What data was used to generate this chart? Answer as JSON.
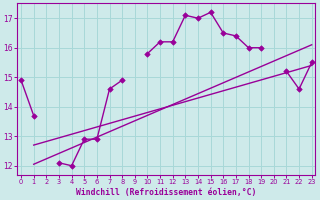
{
  "xlabel": "Windchill (Refroidissement éolien,°C)",
  "bg_color": "#ceeaea",
  "line_color": "#990099",
  "grid_color": "#a8d8d8",
  "x_hours": [
    0,
    1,
    2,
    3,
    4,
    5,
    6,
    7,
    8,
    9,
    10,
    11,
    12,
    13,
    14,
    15,
    16,
    17,
    18,
    19,
    20,
    21,
    22,
    23
  ],
  "y_data": [
    14.9,
    13.7,
    null,
    12.1,
    12.0,
    12.9,
    12.9,
    14.6,
    14.9,
    null,
    15.8,
    16.2,
    16.2,
    17.1,
    17.0,
    17.2,
    16.5,
    16.4,
    16.0,
    16.0,
    null,
    15.2,
    14.6,
    15.5
  ],
  "reg_line1_x": [
    1,
    23
  ],
  "reg_line1_y": [
    12.05,
    16.1
  ],
  "reg_line2_x": [
    1,
    23
  ],
  "reg_line2_y": [
    12.7,
    15.4
  ],
  "ylim": [
    11.7,
    17.5
  ],
  "xlim": [
    -0.3,
    23.3
  ],
  "yticks": [
    12,
    13,
    14,
    15,
    16,
    17
  ],
  "xticks": [
    0,
    1,
    2,
    3,
    4,
    5,
    6,
    7,
    8,
    9,
    10,
    11,
    12,
    13,
    14,
    15,
    16,
    17,
    18,
    19,
    20,
    21,
    22,
    23
  ],
  "marker": "D",
  "markersize": 2.8,
  "linewidth": 1.0
}
